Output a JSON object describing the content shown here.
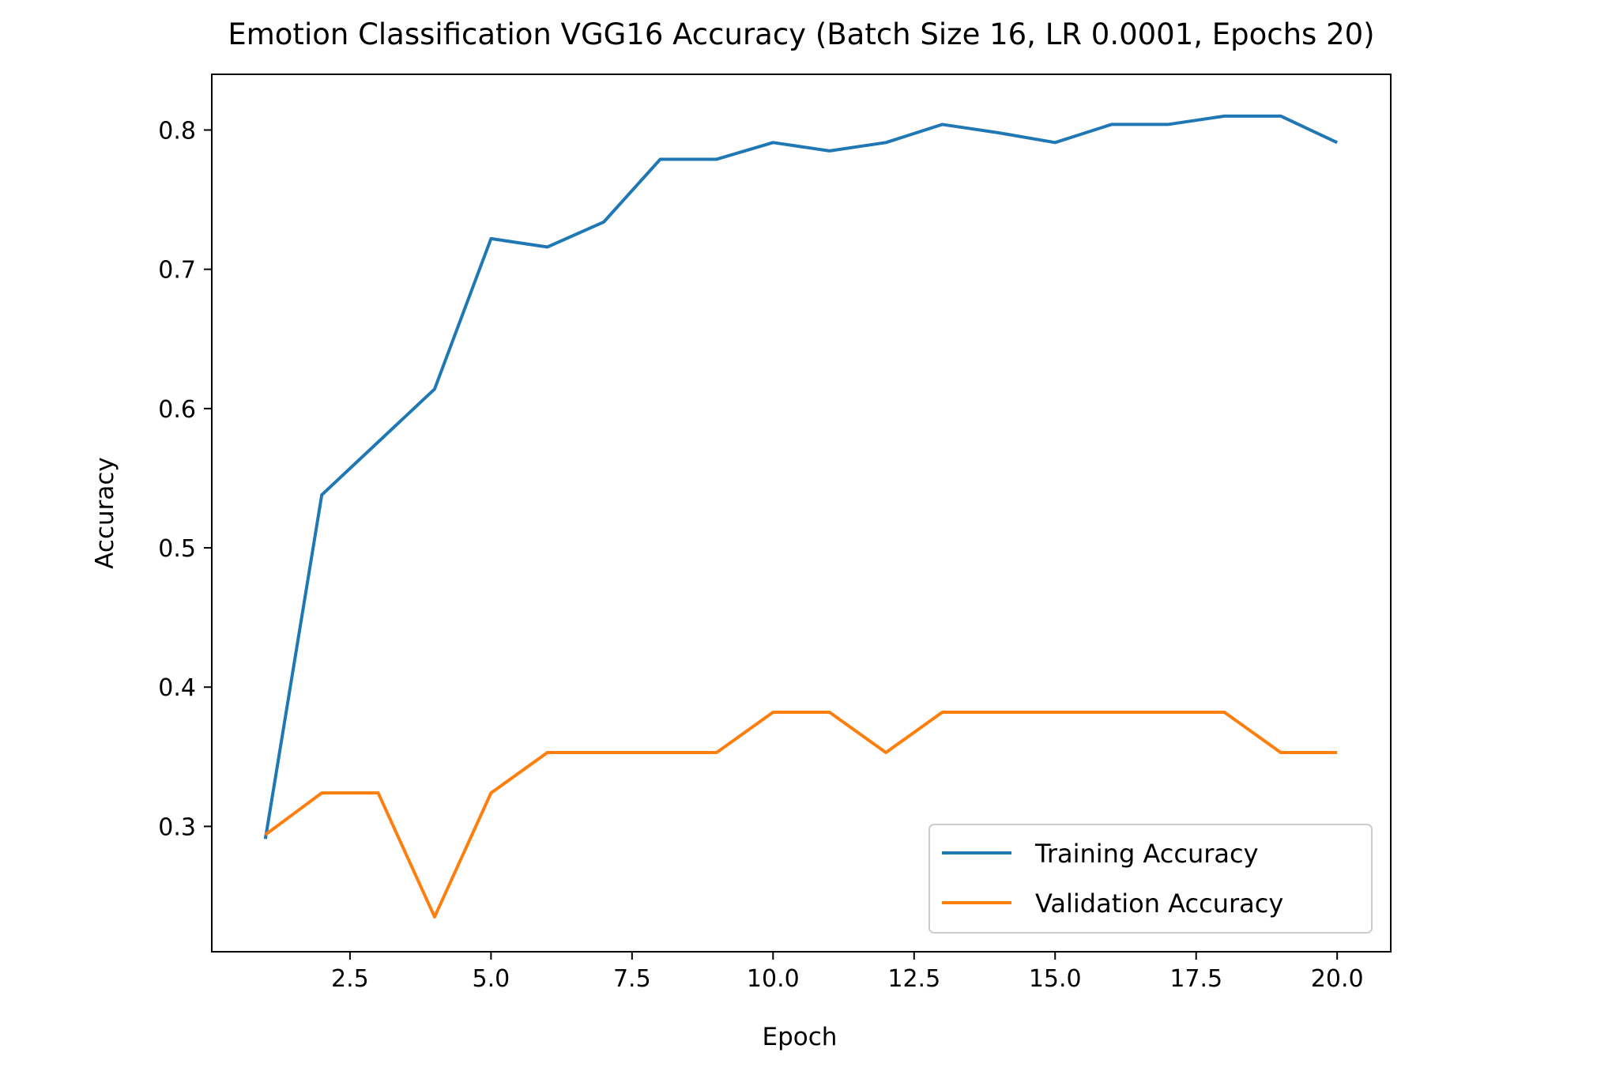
{
  "chart_data": {
    "type": "line",
    "title": "Emotion Classification VGG16 Accuracy (Batch Size 16, LR 0.0001, Epochs 20)",
    "xlabel": "Epoch",
    "ylabel": "Accuracy",
    "x": [
      1,
      2,
      3,
      4,
      5,
      6,
      7,
      8,
      9,
      10,
      11,
      12,
      13,
      14,
      15,
      16,
      17,
      18,
      19,
      20
    ],
    "xlim": [
      0.05,
      20.95
    ],
    "ylim": [
      0.21,
      0.84
    ],
    "xticks": [
      2.5,
      5.0,
      7.5,
      10.0,
      12.5,
      15.0,
      17.5,
      20.0
    ],
    "xtick_labels": [
      "2.5",
      "5.0",
      "7.5",
      "10.0",
      "12.5",
      "15.0",
      "17.5",
      "20.0"
    ],
    "yticks": [
      0.3,
      0.4,
      0.5,
      0.6,
      0.7,
      0.8
    ],
    "ytick_labels": [
      "0.3",
      "0.4",
      "0.5",
      "0.6",
      "0.7",
      "0.8"
    ],
    "grid": false,
    "legend_position": "lower-right",
    "series": [
      {
        "name": "Training Accuracy",
        "color": "#1f77b4",
        "values": [
          0.291,
          0.538,
          0.576,
          0.614,
          0.722,
          0.716,
          0.734,
          0.779,
          0.779,
          0.791,
          0.785,
          0.791,
          0.804,
          0.798,
          0.791,
          0.804,
          0.804,
          0.81,
          0.81,
          0.791
        ]
      },
      {
        "name": "Validation Accuracy",
        "color": "#ff7f0e",
        "values": [
          0.294,
          0.324,
          0.324,
          0.235,
          0.324,
          0.353,
          0.353,
          0.353,
          0.353,
          0.382,
          0.382,
          0.353,
          0.382,
          0.382,
          0.382,
          0.382,
          0.382,
          0.382,
          0.353,
          0.353
        ]
      }
    ]
  }
}
